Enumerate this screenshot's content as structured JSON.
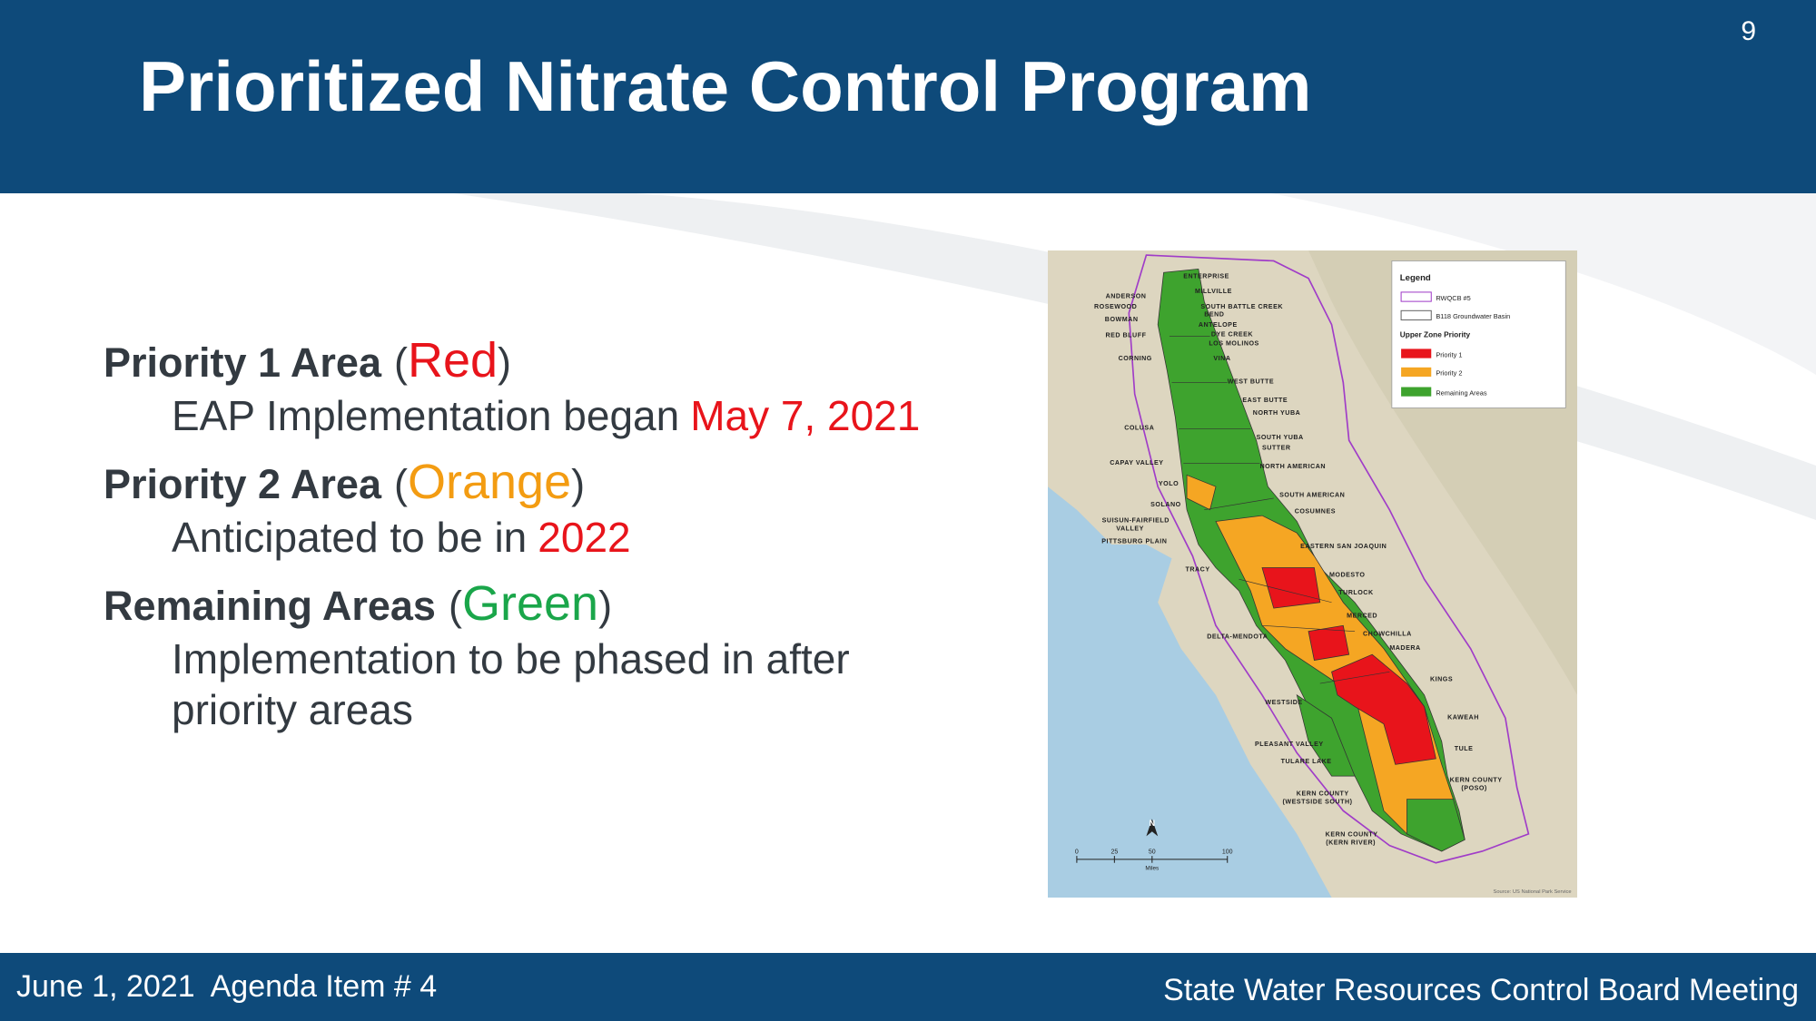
{
  "header": {
    "title": "Prioritized Nitrate Control Program",
    "page_number": "9"
  },
  "body": {
    "items": [
      {
        "heading": [
          {
            "text": "Priority 1 Area",
            "bold": true
          },
          {
            "text": "("
          },
          {
            "text": "Red",
            "color": "#e8141b"
          },
          {
            "text": ")"
          }
        ],
        "lines": [
          [
            {
              "text": "EAP Implementation began"
            },
            {
              "text": "May 7, 2021",
              "color": "#e8141b"
            }
          ]
        ]
      },
      {
        "heading": [
          {
            "text": "Priority 2 Area",
            "bold": true
          },
          {
            "text": "("
          },
          {
            "text": "Orange",
            "color": "#f39c12"
          },
          {
            "text": ")"
          }
        ],
        "lines": [
          [
            {
              "text": "Anticipated to be in"
            },
            {
              "text": "2022",
              "color": "#e8141b"
            }
          ]
        ]
      },
      {
        "heading": [
          {
            "text": "Remaining Areas",
            "bold": true
          },
          {
            "text": "("
          },
          {
            "text": "Green",
            "color": "#1aa64a"
          },
          {
            "text": ")"
          }
        ],
        "lines": [
          [
            {
              "text": "Implementation to be phased in after"
            }
          ],
          [
            {
              "text": "priority areas"
            }
          ]
        ]
      }
    ]
  },
  "map": {
    "legend": {
      "title": "Legend",
      "entries": [
        {
          "label": "RWQCB #5",
          "stroke": "#a03cc8"
        },
        {
          "label": "B118 Groundwater Basin",
          "stroke": "#666666"
        },
        {
          "label": "Upper Zone Priority",
          "heading": true
        },
        {
          "label": "Priority 1",
          "fill": "#e8141b"
        },
        {
          "label": "Priority 2",
          "fill": "#f5a623"
        },
        {
          "label": "Remaining Areas",
          "fill": "#3ea32e"
        }
      ]
    },
    "labels": [
      "ANDERSON",
      "ROSEWOOD",
      "BOWMAN",
      "RED BLUFF",
      "CORNING",
      "COLUSA",
      "CAPAY VALLEY",
      "YOLO",
      "SOLANO",
      "SUISUN-FAIRFIELD",
      "VALLEY",
      "PITTSBURG PLAIN",
      "TRACY",
      "DELTA-MENDOTA",
      "WESTSIDE",
      "PLEASANT VALLEY",
      "TULARE LAKE",
      "KERN COUNTY",
      "(WESTSIDE SOUTH)",
      "KERN COUNTY",
      "(KERN RIVER)",
      "ENTERPRISE",
      "MILLVILLE",
      "SOUTH BATTLE CREEK",
      "BEND",
      "ANTELOPE",
      "DYE CREEK",
      "LOS MOLINOS",
      "VINA",
      "WEST BUTTE",
      "EAST BUTTE",
      "NORTH YUBA",
      "SOUTH YUBA",
      "SUTTER",
      "NORTH AMERICAN",
      "SOUTH AMERICAN",
      "COSUMNES",
      "EASTERN SAN JOAQUIN",
      "MODESTO",
      "TURLOCK",
      "MERCED",
      "CHOWCHILLA",
      "MADERA",
      "KINGS",
      "KAWEAH",
      "TULE",
      "KERN COUNTY",
      "(POSO)"
    ],
    "scale_bar": {
      "ticks": [
        0,
        25,
        50,
        100
      ],
      "unit": "Miles"
    },
    "north": "N",
    "source": "Source: US National Park Service"
  },
  "footer": {
    "left": "June 1, 2021  Agenda Item # 4",
    "right": "State Water Resources Control Board Meeting"
  }
}
